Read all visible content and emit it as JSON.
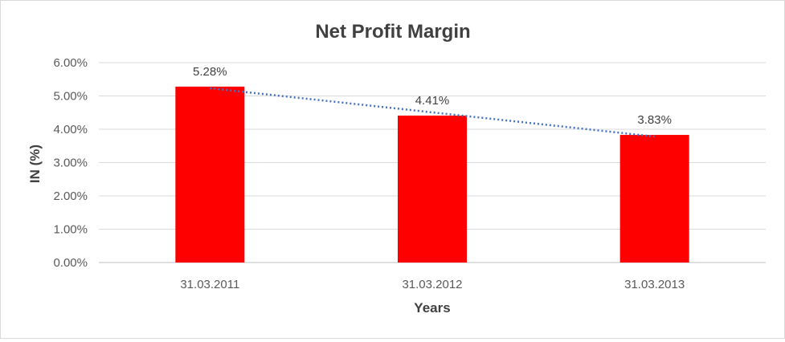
{
  "chart_data": {
    "type": "bar",
    "title": "Net Profit Margin",
    "xlabel": "Years",
    "ylabel": "IN (%)",
    "categories": [
      "31.03.2011",
      "31.03.2012",
      "31.03.2013"
    ],
    "series": [
      {
        "values": [
          5.28,
          4.41,
          3.83
        ],
        "color": "#FF0000"
      }
    ],
    "data_labels": [
      "5.28%",
      "4.41%",
      "3.83%"
    ],
    "ylim": [
      0,
      6
    ],
    "yticks": [
      0,
      1,
      2,
      3,
      4,
      5,
      6
    ],
    "ytick_labels": [
      "0.00%",
      "1.00%",
      "2.00%",
      "3.00%",
      "4.00%",
      "5.00%",
      "6.00%"
    ],
    "grid": true,
    "legend": "none",
    "trendline": {
      "type": "linear",
      "style": "dotted",
      "color": "#4472C4"
    }
  }
}
